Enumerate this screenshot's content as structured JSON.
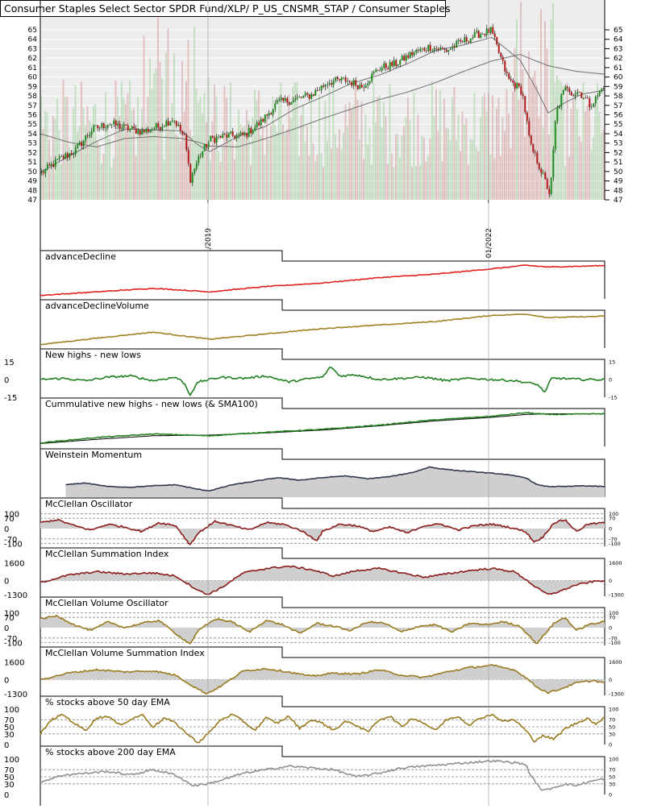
{
  "chart_data": [
    {
      "type": "candlestick",
      "title": "Consumer Staples Select Sector SPDR Fund/XLP/ P_US_CNSMR_STAP / Consumer Staples",
      "yticks": [
        47,
        48,
        49,
        50,
        51,
        52,
        53,
        54,
        55,
        56,
        57,
        58,
        59,
        60,
        61,
        62,
        63,
        64,
        65
      ],
      "ylim": [
        47,
        66.2
      ],
      "x_tick_labels": [
        "01/2019",
        "01/2022"
      ],
      "x_tick_positions": [
        0.297,
        0.794
      ],
      "price": {
        "x": [
          0.0,
          0.03,
          0.06,
          0.09,
          0.12,
          0.15,
          0.18,
          0.21,
          0.235,
          0.255,
          0.265,
          0.28,
          0.3,
          0.33,
          0.36,
          0.39,
          0.42,
          0.45,
          0.48,
          0.51,
          0.54,
          0.57,
          0.6,
          0.63,
          0.66,
          0.69,
          0.72,
          0.75,
          0.78,
          0.8,
          0.83,
          0.855,
          0.87,
          0.88,
          0.89,
          0.905,
          0.915,
          0.925,
          0.935,
          0.945,
          0.955,
          0.965,
          0.975,
          0.985,
          1.0
        ],
        "close": [
          49.8,
          51.2,
          52.2,
          54.4,
          55.1,
          54.6,
          54.2,
          54.8,
          55.6,
          53.5,
          49.2,
          51.5,
          53.4,
          53.8,
          53.8,
          55.2,
          57.3,
          57.6,
          58.1,
          59.5,
          59.7,
          59.0,
          60.9,
          61.4,
          62.5,
          63.2,
          62.8,
          63.8,
          64.6,
          64.9,
          59.8,
          58.5,
          52.6,
          51.4,
          49.9,
          47.5,
          56.0,
          57.9,
          59.1,
          58.2,
          58.5,
          57.9,
          57.1,
          57.6,
          59.1
        ]
      },
      "sma_short": {
        "x": [
          0.0,
          0.05,
          0.1,
          0.15,
          0.2,
          0.25,
          0.28,
          0.3,
          0.35,
          0.4,
          0.45,
          0.5,
          0.55,
          0.6,
          0.65,
          0.7,
          0.75,
          0.8,
          0.85,
          0.88,
          0.9,
          0.93,
          0.96,
          1.0
        ],
        "values": [
          49.9,
          51.6,
          53.2,
          54.5,
          54.4,
          54.3,
          52.8,
          52.1,
          53.7,
          54.8,
          56.6,
          57.9,
          59.3,
          60.2,
          61.4,
          62.8,
          63.4,
          64.2,
          61.8,
          58.6,
          56.2,
          57.3,
          58.2,
          58.6
        ]
      },
      "sma_long": {
        "x": [
          0.0,
          0.05,
          0.1,
          0.15,
          0.2,
          0.25,
          0.28,
          0.3,
          0.35,
          0.4,
          0.45,
          0.5,
          0.55,
          0.6,
          0.65,
          0.7,
          0.75,
          0.8,
          0.85,
          0.87,
          0.9,
          0.95,
          1.0
        ],
        "values": [
          54.0,
          53.1,
          52.6,
          53.5,
          53.7,
          53.5,
          53.1,
          52.7,
          52.6,
          53.5,
          54.5,
          55.6,
          56.6,
          57.6,
          58.4,
          59.4,
          60.6,
          61.7,
          62.4,
          61.9,
          61.2,
          60.6,
          60.3
        ]
      }
    },
    {
      "type": "line",
      "title": "advanceDecline",
      "color": "#e02020",
      "x": [
        0.0,
        0.1,
        0.2,
        0.3,
        0.4,
        0.5,
        0.6,
        0.7,
        0.8,
        0.86,
        0.9,
        0.95,
        1.0
      ],
      "values": [
        0.1,
        0.2,
        0.3,
        0.2,
        0.35,
        0.45,
        0.6,
        0.7,
        0.85,
        0.95,
        0.9,
        0.92,
        0.94
      ],
      "fill": false,
      "scale": "norm"
    },
    {
      "type": "line",
      "title": "advanceDeclineVolume",
      "color": "#a08020",
      "x": [
        0.0,
        0.1,
        0.2,
        0.3,
        0.4,
        0.5,
        0.6,
        0.7,
        0.8,
        0.86,
        0.9,
        0.95,
        1.0
      ],
      "values": [
        0.1,
        0.28,
        0.45,
        0.25,
        0.4,
        0.55,
        0.65,
        0.75,
        0.92,
        0.96,
        0.86,
        0.88,
        0.9
      ],
      "fill": false,
      "scale": "norm"
    },
    {
      "type": "line",
      "title": "New highs - new lows",
      "color": "#208020",
      "yticks_left": [
        15,
        0,
        -15
      ],
      "yticks_right": [
        15,
        0,
        -15
      ],
      "ylim": [
        -15,
        15
      ],
      "x": [
        0.0,
        0.04,
        0.08,
        0.12,
        0.16,
        0.2,
        0.24,
        0.255,
        0.265,
        0.28,
        0.32,
        0.36,
        0.4,
        0.44,
        0.48,
        0.5,
        0.515,
        0.53,
        0.56,
        0.6,
        0.64,
        0.68,
        0.72,
        0.76,
        0.8,
        0.84,
        0.88,
        0.895,
        0.905,
        0.92,
        0.96,
        1.0
      ],
      "values": [
        0,
        1,
        -1,
        2,
        3,
        -1,
        2,
        -3,
        -13,
        -2,
        2,
        1,
        3,
        -2,
        1,
        2,
        11,
        3,
        4,
        0,
        1,
        2,
        -1,
        1,
        0,
        -1,
        -4,
        -11,
        1,
        1,
        0,
        0
      ],
      "fill": false,
      "scale": "fixed"
    },
    {
      "type": "line",
      "title": "Cummulative new highs - new lows (& SMA100)",
      "color": "#208020",
      "color2": "#000000",
      "x": [
        0.0,
        0.1,
        0.2,
        0.3,
        0.4,
        0.5,
        0.6,
        0.7,
        0.8,
        0.86,
        0.9,
        1.0
      ],
      "values": [
        0.1,
        0.25,
        0.35,
        0.3,
        0.4,
        0.48,
        0.6,
        0.75,
        0.85,
        0.95,
        0.9,
        0.92
      ],
      "values2": [
        0.08,
        0.2,
        0.3,
        0.32,
        0.38,
        0.46,
        0.58,
        0.72,
        0.82,
        0.9,
        0.92,
        0.92
      ],
      "fill": false,
      "scale": "norm"
    },
    {
      "type": "area",
      "title": "Weinstein Momentum",
      "color": "#303850",
      "x": [
        0.045,
        0.08,
        0.12,
        0.16,
        0.2,
        0.24,
        0.28,
        0.3,
        0.34,
        0.38,
        0.42,
        0.46,
        0.5,
        0.54,
        0.58,
        0.62,
        0.66,
        0.69,
        0.71,
        0.74,
        0.78,
        0.82,
        0.86,
        0.88,
        0.9,
        0.93,
        0.96,
        1.0
      ],
      "values": [
        0.35,
        0.4,
        0.3,
        0.28,
        0.32,
        0.35,
        0.22,
        0.18,
        0.35,
        0.45,
        0.55,
        0.48,
        0.55,
        0.6,
        0.52,
        0.58,
        0.7,
        0.85,
        0.8,
        0.75,
        0.7,
        0.65,
        0.55,
        0.35,
        0.3,
        0.3,
        0.32,
        0.3
      ],
      "baseline_level": 0.0,
      "fill": true,
      "scale": "norm"
    },
    {
      "type": "area",
      "title": "McClellan Oscillator",
      "color": "#8b1a1a",
      "yticks_left": [
        100,
        70,
        0,
        -70,
        -100
      ],
      "yticks_right": [
        100,
        70,
        0,
        -70,
        -100
      ],
      "dashed_levels": [
        100,
        70,
        -70,
        -100
      ],
      "ylim": [
        -120,
        120
      ],
      "x": [
        0.0,
        0.03,
        0.06,
        0.09,
        0.12,
        0.15,
        0.18,
        0.21,
        0.24,
        0.265,
        0.28,
        0.31,
        0.34,
        0.37,
        0.4,
        0.43,
        0.46,
        0.49,
        0.5,
        0.53,
        0.56,
        0.59,
        0.62,
        0.65,
        0.68,
        0.71,
        0.74,
        0.77,
        0.8,
        0.83,
        0.86,
        0.875,
        0.89,
        0.91,
        0.93,
        0.95,
        0.97,
        1.0
      ],
      "values": [
        40,
        60,
        20,
        -10,
        30,
        10,
        -20,
        40,
        20,
        -110,
        -30,
        50,
        20,
        -10,
        40,
        30,
        -10,
        -80,
        -20,
        30,
        20,
        -20,
        10,
        -30,
        20,
        30,
        -10,
        20,
        30,
        10,
        -20,
        -90,
        -60,
        40,
        60,
        -20,
        30,
        40
      ],
      "baseline_level": 0,
      "fill": true,
      "scale": "fixed"
    },
    {
      "type": "area",
      "title": "McClellan Summation Index",
      "color": "#8b1a1a",
      "yticks_left": [
        1600,
        0,
        -1300
      ],
      "yticks_right": [
        1600,
        0,
        -1300
      ],
      "dashed_levels": [
        0
      ],
      "ylim": [
        -1450,
        1800
      ],
      "x": [
        0.0,
        0.05,
        0.1,
        0.15,
        0.2,
        0.24,
        0.27,
        0.295,
        0.32,
        0.36,
        0.4,
        0.44,
        0.48,
        0.52,
        0.56,
        0.6,
        0.64,
        0.68,
        0.72,
        0.76,
        0.8,
        0.84,
        0.86,
        0.88,
        0.9,
        0.92,
        0.95,
        0.98,
        1.0
      ],
      "values": [
        -200,
        500,
        800,
        600,
        700,
        400,
        -600,
        -1300,
        -700,
        700,
        1100,
        1300,
        1000,
        400,
        900,
        1100,
        700,
        300,
        600,
        900,
        1100,
        800,
        100,
        -700,
        -1300,
        -1000,
        -400,
        -100,
        0
      ],
      "baseline_level": 0,
      "fill": true,
      "scale": "fixed"
    },
    {
      "type": "area",
      "title": "McClellan Volume Oscillator",
      "color": "#9a7a1e",
      "yticks_left": [
        100,
        70,
        0,
        -70,
        -100
      ],
      "yticks_right": [
        100,
        70,
        0,
        -70,
        -100
      ],
      "dashed_levels": [
        100,
        70,
        -70,
        -100
      ],
      "ylim": [
        -120,
        120
      ],
      "x": [
        0.0,
        0.03,
        0.06,
        0.09,
        0.12,
        0.15,
        0.18,
        0.21,
        0.24,
        0.265,
        0.28,
        0.31,
        0.34,
        0.37,
        0.4,
        0.43,
        0.46,
        0.49,
        0.52,
        0.55,
        0.58,
        0.61,
        0.64,
        0.67,
        0.7,
        0.73,
        0.76,
        0.79,
        0.82,
        0.85,
        0.88,
        0.89,
        0.91,
        0.93,
        0.95,
        0.97,
        1.0
      ],
      "values": [
        60,
        80,
        20,
        -20,
        40,
        0,
        30,
        50,
        -40,
        -110,
        -20,
        60,
        40,
        -30,
        50,
        20,
        -40,
        30,
        10,
        -20,
        40,
        30,
        -30,
        10,
        20,
        -30,
        30,
        20,
        40,
        10,
        -110,
        -60,
        30,
        70,
        -20,
        20,
        40
      ],
      "baseline_level": 0,
      "fill": true,
      "scale": "fixed"
    },
    {
      "type": "area",
      "title": "McClellan Volume Summation Index",
      "color": "#9a7a1e",
      "yticks_left": [
        1600,
        0,
        -1300
      ],
      "yticks_right": [
        1600,
        0,
        -1300
      ],
      "dashed_levels": [
        0
      ],
      "ylim": [
        -1450,
        1800
      ],
      "x": [
        0.0,
        0.05,
        0.1,
        0.15,
        0.2,
        0.24,
        0.27,
        0.295,
        0.32,
        0.36,
        0.4,
        0.44,
        0.48,
        0.52,
        0.56,
        0.6,
        0.64,
        0.68,
        0.72,
        0.76,
        0.8,
        0.84,
        0.86,
        0.88,
        0.9,
        0.92,
        0.95,
        0.98,
        1.0
      ],
      "values": [
        0,
        600,
        900,
        700,
        800,
        400,
        -600,
        -1300,
        -600,
        800,
        1000,
        700,
        300,
        600,
        500,
        900,
        400,
        200,
        700,
        1100,
        1300,
        900,
        200,
        -700,
        -1200,
        -900,
        -300,
        -100,
        -300
      ],
      "baseline_level": 0,
      "fill": true,
      "scale": "fixed"
    },
    {
      "type": "line",
      "title": "% stocks above 50 day EMA",
      "color": "#9a7a1e",
      "yticks_left": [
        100,
        70,
        50,
        30,
        0
      ],
      "yticks_right": [
        100,
        70,
        50,
        30,
        0
      ],
      "dashed_levels": [
        70,
        50,
        30
      ],
      "ylim": [
        0,
        100
      ],
      "x": [
        0.0,
        0.02,
        0.04,
        0.06,
        0.08,
        0.1,
        0.12,
        0.14,
        0.16,
        0.18,
        0.2,
        0.22,
        0.24,
        0.26,
        0.28,
        0.3,
        0.32,
        0.34,
        0.36,
        0.38,
        0.4,
        0.42,
        0.44,
        0.46,
        0.48,
        0.5,
        0.52,
        0.54,
        0.56,
        0.58,
        0.6,
        0.62,
        0.64,
        0.66,
        0.68,
        0.7,
        0.72,
        0.74,
        0.76,
        0.78,
        0.8,
        0.82,
        0.84,
        0.86,
        0.875,
        0.89,
        0.91,
        0.93,
        0.95,
        0.97,
        0.985,
        1.0
      ],
      "values": [
        30,
        70,
        85,
        60,
        40,
        75,
        80,
        55,
        70,
        85,
        50,
        75,
        60,
        30,
        5,
        35,
        70,
        85,
        65,
        40,
        75,
        60,
        80,
        45,
        70,
        60,
        40,
        65,
        55,
        35,
        70,
        80,
        50,
        75,
        60,
        40,
        70,
        80,
        55,
        75,
        85,
        65,
        70,
        40,
        10,
        25,
        15,
        45,
        60,
        75,
        55,
        80
      ],
      "fill": false,
      "scale": "fixed"
    },
    {
      "type": "line",
      "title": "% stocks above 200 day EMA",
      "color": "#909090",
      "yticks_left": [
        100,
        70,
        50,
        30,
        0
      ],
      "yticks_right": [
        100,
        70,
        50,
        30,
        0
      ],
      "dashed_levels": [
        70,
        50,
        30
      ],
      "ylim": [
        0,
        100
      ],
      "x": [
        0.0,
        0.04,
        0.08,
        0.12,
        0.16,
        0.2,
        0.24,
        0.27,
        0.295,
        0.32,
        0.36,
        0.4,
        0.44,
        0.48,
        0.52,
        0.56,
        0.6,
        0.64,
        0.68,
        0.72,
        0.76,
        0.8,
        0.84,
        0.86,
        0.87,
        0.89,
        0.91,
        0.93,
        0.95,
        0.97,
        1.0
      ],
      "values": [
        35,
        55,
        60,
        65,
        55,
        70,
        55,
        25,
        30,
        40,
        60,
        70,
        80,
        75,
        70,
        50,
        60,
        75,
        80,
        85,
        90,
        95,
        90,
        85,
        50,
        10,
        20,
        30,
        25,
        35,
        45
      ],
      "fill": false,
      "scale": "fixed"
    }
  ]
}
